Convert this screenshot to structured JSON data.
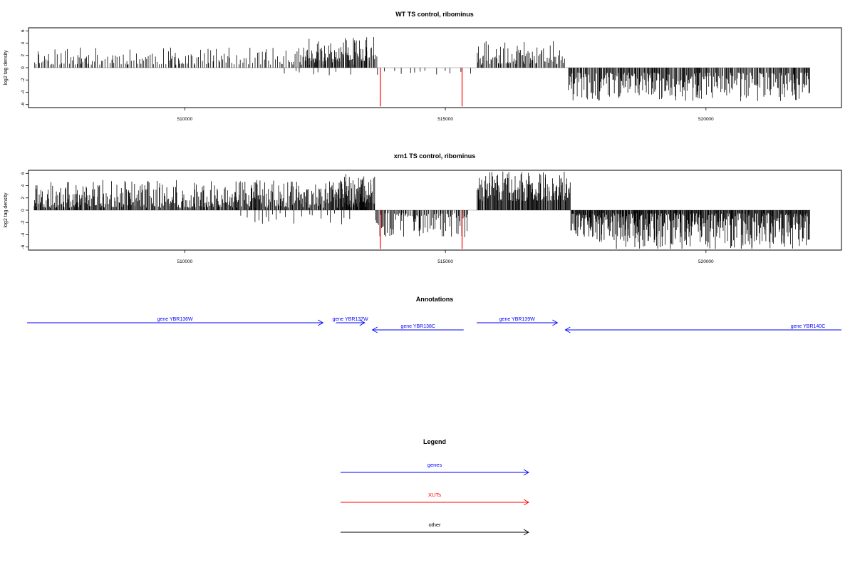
{
  "chart_data": [
    {
      "type": "bar",
      "title": "WT TS control, ribominus",
      "ylabel": "log2 tag density",
      "xlim": [
        507000,
        522600
      ],
      "ylim": [
        -6.5,
        6.5
      ],
      "yticks": [
        -6,
        -4,
        -2,
        0,
        2,
        4,
        6
      ],
      "xticks": [
        510000,
        515000,
        520000
      ],
      "xtick_labels": [
        "510000",
        "515000",
        "520000"
      ],
      "grid": false,
      "series": [
        {
          "color": "#000000",
          "segments": [
            {
              "x": [
                507100,
                513550
              ],
              "strand": "+",
              "density": 0.45,
              "min": 0.5,
              "max": 3.3,
              "seed": 11
            },
            {
              "x": [
                512300,
                513700
              ],
              "strand": "+",
              "density": 0.75,
              "min": 1.0,
              "max": 5.0,
              "seed": 12
            },
            {
              "x": [
                511800,
                513400
              ],
              "strand": "-",
              "density": 0.08,
              "min": 0.5,
              "max": 2.0,
              "seed": 13
            },
            {
              "x": [
                513600,
                515500
              ],
              "strand": "-",
              "density": 0.09,
              "min": 0.5,
              "max": 2.2,
              "seed": 14
            },
            {
              "x": [
                515600,
                517300
              ],
              "strand": "+",
              "density": 0.75,
              "min": 0.5,
              "max": 4.4,
              "seed": 15
            },
            {
              "x": [
                517350,
                522000
              ],
              "strand": "-",
              "density": 0.9,
              "min": 0.8,
              "max": 5.5,
              "seed": 16
            }
          ]
        },
        {
          "name": "XUTs",
          "color": "#ff0000",
          "bars": [
            {
              "x": 513750,
              "y": -6.3
            },
            {
              "x": 515320,
              "y": -6.3
            }
          ]
        }
      ]
    },
    {
      "type": "bar",
      "title": "xrn1 TS control, ribominus",
      "ylabel": "log2 tag density",
      "xlim": [
        507000,
        522600
      ],
      "ylim": [
        -6.5,
        6.5
      ],
      "yticks": [
        -6,
        -4,
        -2,
        0,
        2,
        4,
        6
      ],
      "xticks": [
        510000,
        515000,
        520000
      ],
      "xtick_labels": [
        "510000",
        "515000",
        "520000"
      ],
      "grid": false,
      "series": [
        {
          "color": "#000000",
          "segments": [
            {
              "x": [
                507100,
                513600
              ],
              "strand": "+",
              "density": 1.0,
              "min": 0.4,
              "max": 4.9,
              "seed": 21
            },
            {
              "x": [
                512900,
                513650
              ],
              "strand": "+",
              "density": 0.9,
              "min": 1.0,
              "max": 6.0,
              "seed": 22
            },
            {
              "x": [
                511000,
                513300
              ],
              "strand": "-",
              "density": 0.12,
              "min": 0.5,
              "max": 2.5,
              "seed": 23
            },
            {
              "x": [
                513650,
                515450
              ],
              "strand": "-",
              "density": 0.7,
              "min": 0.5,
              "max": 4.5,
              "seed": 24
            },
            {
              "x": [
                515600,
                517400
              ],
              "strand": "+",
              "density": 1.2,
              "min": 1.5,
              "max": 6.3,
              "seed": 25
            },
            {
              "x": [
                517400,
                522000
              ],
              "strand": "-",
              "density": 1.3,
              "min": 0.5,
              "max": 6.3,
              "seed": 26
            }
          ]
        },
        {
          "name": "XUTs",
          "color": "#ff0000",
          "bars": [
            {
              "x": 513750,
              "y": -6.3
            },
            {
              "x": 515320,
              "y": -6.3
            }
          ]
        }
      ]
    }
  ],
  "annotations": {
    "title": "Annotations",
    "genes": [
      {
        "label": "gene YBR136W",
        "start": 506300,
        "end": 512650,
        "strand": "+",
        "row": 1
      },
      {
        "label": "gene YBR137W",
        "start": 512900,
        "end": 513450,
        "strand": "+",
        "row": 1
      },
      {
        "label": "gene YBR138C",
        "start": 513600,
        "end": 515350,
        "strand": "-",
        "row": 2
      },
      {
        "label": "gene YBR139W",
        "start": 515600,
        "end": 517150,
        "strand": "+",
        "row": 1
      },
      {
        "label": "gene YBR140C",
        "start": 517300,
        "end": 522600,
        "strand": "-",
        "row": 2
      }
    ]
  },
  "legend": {
    "title": "Legend",
    "items": [
      {
        "label": "genes",
        "color": "#0000ff"
      },
      {
        "label": "XUTs",
        "color": "#ff0000"
      },
      {
        "label": "other",
        "color": "#000000"
      }
    ]
  }
}
